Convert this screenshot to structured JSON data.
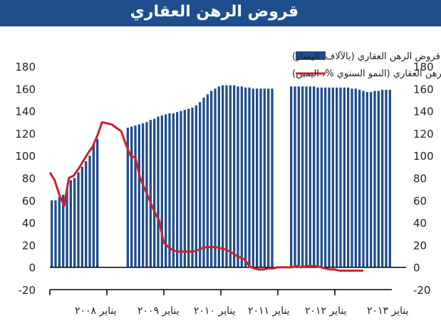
{
  "chart_data": {
    "type": "bar+line",
    "title": "قروض الرهن العقاري",
    "y_left_ticks": [
      "180",
      "160",
      "140",
      "120",
      "100",
      "80",
      "60",
      "40",
      "20",
      "0",
      "-20"
    ],
    "y_right_ticks": [
      "180",
      "160",
      "140",
      "120",
      "100",
      "80",
      "60",
      "40",
      "20",
      "0",
      "-20"
    ],
    "ylim": [
      -20,
      180
    ],
    "x_tick_labels": [
      "يناير ٢٠٠٨",
      "يناير ٢٠٠٩",
      "يناير ٢٠١٠",
      "يناير ٢٠١١",
      "يناير ٢٠١٢",
      "يناير ٢٠١٣"
    ],
    "x_range_months": [
      0,
      72
    ],
    "series": [
      {
        "name": "قروض الرهن العقاري (بالآلاف، اليسار)",
        "type": "bar",
        "color": "#1f4e8c",
        "values": [
          60,
          60,
          63,
          65,
          70,
          78,
          80,
          85,
          90,
          95,
          100,
          110,
          115,
          null,
          null,
          null,
          null,
          null,
          null,
          null,
          125,
          126,
          127,
          128,
          129,
          130,
          132,
          133,
          135,
          136,
          137,
          138,
          138,
          139,
          140,
          141,
          142,
          143,
          145,
          148,
          152,
          155,
          158,
          160,
          162,
          163,
          163,
          163,
          163,
          162,
          162,
          161,
          161,
          160,
          160,
          160,
          160,
          160,
          160,
          null,
          null,
          null,
          null,
          162,
          162,
          162,
          162,
          162,
          162,
          162,
          161,
          161,
          161,
          161,
          161,
          161,
          161,
          161,
          161,
          160,
          160,
          159,
          158,
          157,
          157,
          158,
          158,
          159,
          159,
          159
        ]
      },
      {
        "name": "نمو قروض الرهن العقاري (النمو السنوي %، اليمين)",
        "type": "line",
        "color": "#cc2229",
        "points": [
          [
            0,
            85
          ],
          [
            1,
            78
          ],
          [
            2,
            65
          ],
          [
            3,
            55
          ],
          [
            4,
            80
          ],
          [
            5,
            82
          ],
          [
            6,
            88
          ],
          [
            7,
            95
          ],
          [
            8,
            102
          ],
          [
            9,
            108
          ],
          [
            10,
            118
          ],
          [
            11,
            130
          ],
          [
            13,
            128
          ],
          [
            14,
            125
          ],
          [
            15,
            122
          ],
          [
            16,
            110
          ],
          [
            17,
            100
          ],
          [
            18,
            98
          ],
          [
            19,
            80
          ],
          [
            20,
            70
          ],
          [
            21,
            60
          ],
          [
            22,
            50
          ],
          [
            23,
            42
          ],
          [
            24,
            22
          ],
          [
            25,
            18
          ],
          [
            26,
            15
          ],
          [
            27,
            14
          ],
          [
            28,
            14
          ],
          [
            29,
            14
          ],
          [
            30,
            14
          ],
          [
            31,
            15
          ],
          [
            32,
            17
          ],
          [
            33,
            18
          ],
          [
            34,
            18
          ],
          [
            35,
            18
          ],
          [
            36,
            17
          ],
          [
            37,
            16
          ],
          [
            38,
            14
          ],
          [
            39,
            11
          ],
          [
            40,
            9
          ],
          [
            41,
            7
          ],
          [
            42,
            1
          ],
          [
            43,
            -1
          ],
          [
            44,
            -2
          ],
          [
            45,
            -2
          ],
          [
            46,
            -1
          ],
          [
            47,
            -1
          ],
          [
            48,
            0
          ],
          [
            49,
            0
          ],
          [
            50,
            0
          ],
          [
            51,
            0
          ],
          [
            52,
            1
          ],
          [
            53,
            0
          ],
          [
            54,
            1
          ],
          [
            55,
            1
          ],
          [
            56,
            1
          ],
          [
            57,
            0
          ],
          [
            58,
            -1
          ],
          [
            59,
            -2
          ],
          [
            60,
            -2
          ],
          [
            61,
            -3
          ],
          [
            62,
            -3
          ],
          [
            63,
            -3
          ],
          [
            64,
            -3
          ],
          [
            65,
            -3
          ],
          [
            66,
            -3
          ]
        ]
      }
    ],
    "zero_line": true
  }
}
